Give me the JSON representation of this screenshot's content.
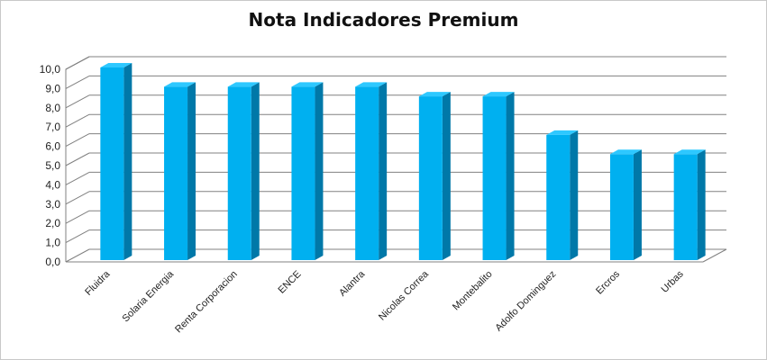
{
  "chart_data": {
    "type": "bar",
    "title": "Nota Indicadores Premium",
    "categories": [
      "Fluidra",
      "Solaria Energia",
      "Renta Corporacion",
      "ENCE",
      "Alantra",
      "Nicolas Correa",
      "Montebalito",
      "Adolfo Dominguez",
      "Ercros",
      "Urbas"
    ],
    "values": [
      10.0,
      9.0,
      9.0,
      9.0,
      9.0,
      8.5,
      8.5,
      6.5,
      5.5,
      5.5
    ],
    "ylim": [
      0,
      10
    ],
    "yticks": [
      "0,0",
      "1,0",
      "2,0",
      "3,0",
      "4,0",
      "5,0",
      "6,0",
      "7,0",
      "8,0",
      "9,0",
      "10,0"
    ],
    "grid": true,
    "legend": "none",
    "colors": {
      "front": "#00b0f0",
      "top": "#2ec8ff",
      "side": "#0078a8",
      "grid": "#808080"
    }
  }
}
